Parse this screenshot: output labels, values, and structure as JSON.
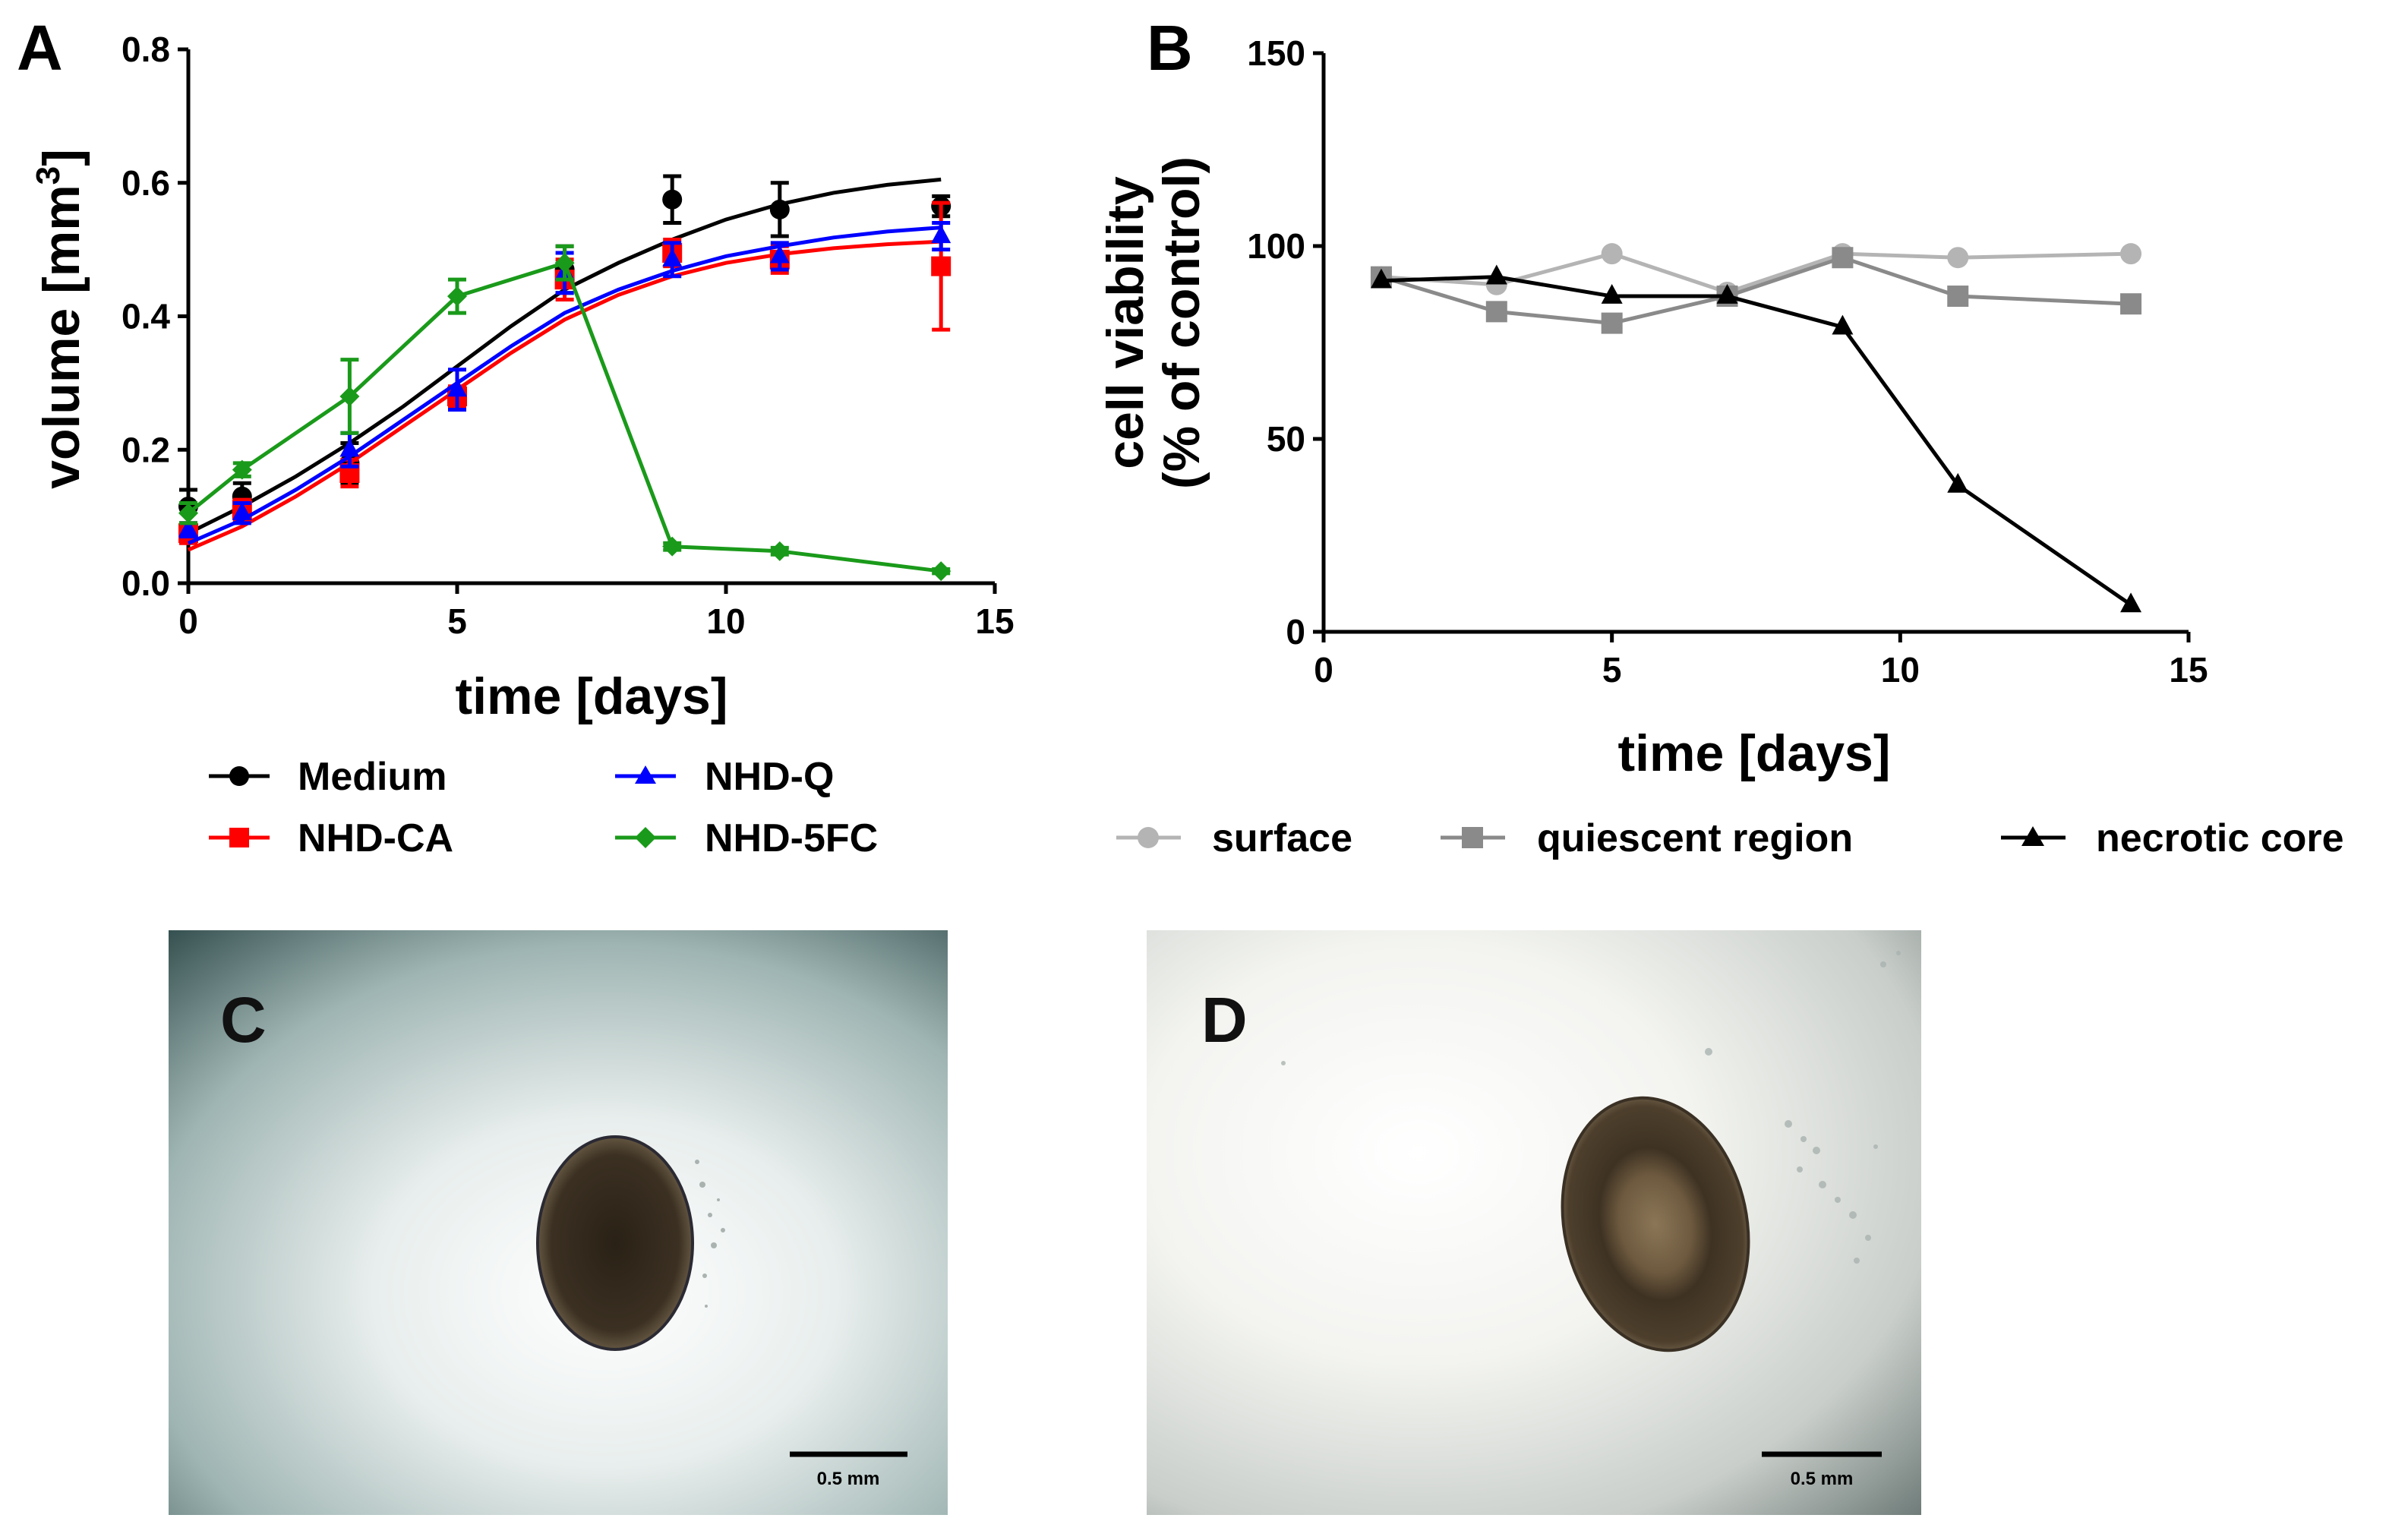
{
  "figure": {
    "panel_labels": [
      "A",
      "B",
      "C",
      "D"
    ],
    "scale_bar_label": "0.5 mm",
    "image_c_name": "spheroid-c",
    "image_d_name": "spheroid-d"
  },
  "chart_data": [
    {
      "type": "line",
      "panel": "A",
      "title": "",
      "xlabel": "time [days]",
      "ylabel": "volume [mm",
      "ylabel_sup": "3",
      "ylabel_end": "]",
      "xlim": [
        0,
        15
      ],
      "ylim": [
        0.0,
        0.8
      ],
      "xticks": [
        0,
        5,
        10,
        15
      ],
      "xtick_labels": [
        "0",
        "5",
        "10",
        "15"
      ],
      "yticks": [
        0.0,
        0.2,
        0.4,
        0.6,
        0.8
      ],
      "ytick_labels": [
        "0.0",
        "0.2",
        "0.4",
        "0.6",
        "0.8"
      ],
      "legend_position": "bottom",
      "series": [
        {
          "name": "Medium",
          "color": "#000000",
          "marker": "circle",
          "x": [
            0,
            1,
            3,
            5,
            7,
            9,
            11,
            14
          ],
          "y": [
            0.115,
            0.13,
            0.18,
            0.275,
            0.47,
            0.575,
            0.56,
            0.565
          ],
          "err": [
            0.025,
            0.02,
            0.03,
            0.015,
            0.035,
            0.035,
            0.04,
            0.015
          ],
          "fit": {
            "x": [
              0,
              1,
              2,
              3,
              4,
              5,
              6,
              7,
              8,
              9,
              10,
              11,
              12,
              13,
              14
            ],
            "y": [
              0.075,
              0.115,
              0.16,
              0.21,
              0.265,
              0.325,
              0.385,
              0.44,
              0.48,
              0.515,
              0.545,
              0.568,
              0.585,
              0.597,
              0.605
            ]
          }
        },
        {
          "name": "NHD-CA",
          "color": "#ff0000",
          "marker": "square",
          "x": [
            0,
            1,
            3,
            5,
            7,
            9,
            11,
            14
          ],
          "y": [
            0.075,
            0.11,
            0.165,
            0.28,
            0.455,
            0.495,
            0.485,
            0.475
          ],
          "err": [
            0.015,
            0.015,
            0.02,
            0.015,
            0.03,
            0.02,
            0.02,
            0.095
          ],
          "fit": {
            "x": [
              0,
              1,
              2,
              3,
              4,
              5,
              6,
              7,
              8,
              9,
              10,
              11,
              12,
              13,
              14
            ],
            "y": [
              0.05,
              0.085,
              0.13,
              0.18,
              0.235,
              0.29,
              0.345,
              0.395,
              0.432,
              0.46,
              0.48,
              0.493,
              0.502,
              0.508,
              0.512
            ]
          }
        },
        {
          "name": "NHD-Q",
          "color": "#0000ff",
          "marker": "triangle",
          "x": [
            0,
            1,
            3,
            5,
            7,
            9,
            11,
            14
          ],
          "y": [
            0.08,
            0.105,
            0.2,
            0.29,
            0.465,
            0.485,
            0.49,
            0.52
          ],
          "err": [
            0.01,
            0.015,
            0.025,
            0.03,
            0.03,
            0.025,
            0.02,
            0.02
          ],
          "fit": {
            "x": [
              0,
              1,
              2,
              3,
              4,
              5,
              6,
              7,
              8,
              9,
              10,
              11,
              12,
              13,
              14
            ],
            "y": [
              0.06,
              0.095,
              0.14,
              0.19,
              0.245,
              0.3,
              0.355,
              0.405,
              0.44,
              0.468,
              0.49,
              0.505,
              0.518,
              0.527,
              0.533
            ]
          }
        },
        {
          "name": "NHD-5FC",
          "color": "#1a9a1a",
          "marker": "diamond",
          "x": [
            0,
            1,
            3,
            5,
            7,
            9,
            11,
            14
          ],
          "y": [
            0.105,
            0.17,
            0.28,
            0.43,
            0.48,
            0.055,
            0.048,
            0.018
          ],
          "err": [
            0.015,
            0.01,
            0.055,
            0.025,
            0.025,
            0.005,
            0.005,
            0.003
          ]
        }
      ]
    },
    {
      "type": "line",
      "panel": "B",
      "title": "",
      "xlabel": "time [days]",
      "ylabel": "cell viability",
      "ylabel2": "(% of control)",
      "xlim": [
        0,
        15
      ],
      "ylim": [
        0,
        150
      ],
      "xticks": [
        0,
        5,
        10,
        15
      ],
      "xtick_labels": [
        "0",
        "5",
        "10",
        "15"
      ],
      "yticks": [
        0,
        50,
        100,
        150
      ],
      "ytick_labels": [
        "0",
        "50",
        "100",
        "150"
      ],
      "legend_position": "bottom",
      "series": [
        {
          "name": "surface",
          "color": "#b4b4b4",
          "marker": "circle",
          "x": [
            1,
            3,
            5,
            7,
            9,
            11,
            14
          ],
          "y": [
            92,
            90,
            98,
            88,
            98,
            97,
            98
          ]
        },
        {
          "name": "quiescent region",
          "color": "#8a8a8a",
          "marker": "square",
          "x": [
            1,
            3,
            5,
            7,
            9,
            11,
            14
          ],
          "y": [
            92,
            83,
            80,
            87,
            97,
            87,
            85
          ]
        },
        {
          "name": "necrotic core",
          "color": "#000000",
          "marker": "triangle",
          "x": [
            1,
            3,
            5,
            7,
            9,
            11,
            14
          ],
          "y": [
            91,
            92,
            87,
            87,
            79,
            38,
            7
          ]
        }
      ]
    }
  ]
}
